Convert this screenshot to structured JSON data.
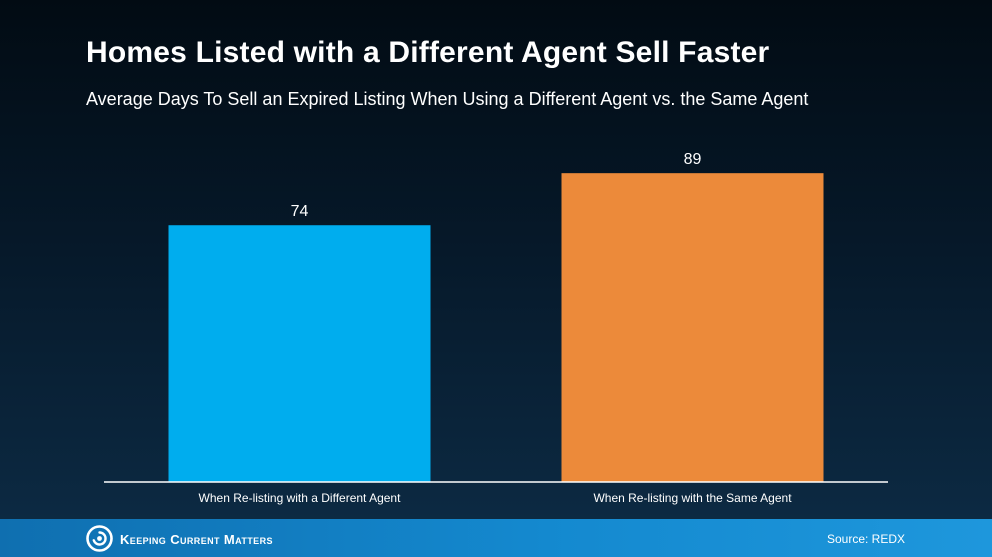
{
  "header": {
    "title": "Homes Listed with a Different Agent Sell Faster",
    "subtitle": "Average Days To Sell an Expired Listing When Using a Different Agent vs. the Same Agent"
  },
  "footer": {
    "brand": "Keeping Current Matters",
    "source": "Source: REDX"
  },
  "chart_data": {
    "type": "bar",
    "title": "Homes Listed with a Different Agent Sell Faster",
    "subtitle": "Average Days To Sell an Expired Listing When Using a Different Agent vs. the Same Agent",
    "categories": [
      "When Re-listing with a Different Agent",
      "When Re-listing with the Same Agent"
    ],
    "values": [
      74,
      89
    ],
    "data_labels": [
      "74",
      "89"
    ],
    "colors": [
      "#00adee",
      "#ec8a3a"
    ],
    "ylim": [
      0,
      100
    ],
    "grid": false,
    "legend": "none"
  }
}
